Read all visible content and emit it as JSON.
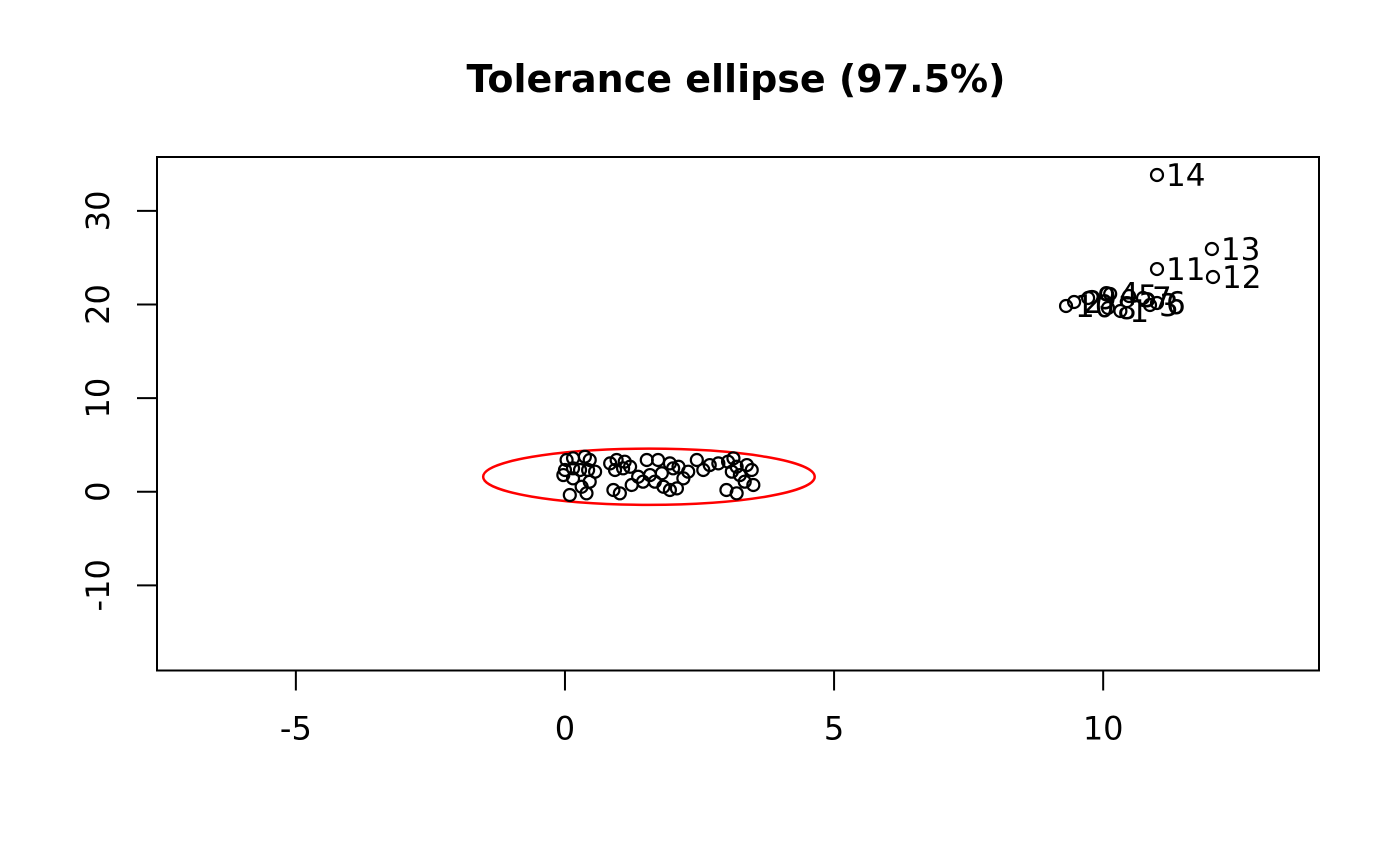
{
  "chart_data": {
    "type": "scatter",
    "title": "Tolerance ellipse (97.5%)",
    "xlabel": "",
    "ylabel": "",
    "xlim": [
      -7.58,
      14.01
    ],
    "ylim": [
      -19.1,
      35.76
    ],
    "x_ticks": [
      "-5",
      "0",
      "5",
      "10"
    ],
    "x_tick_values": [
      -5,
      0,
      5,
      10
    ],
    "y_ticks": [
      "-10",
      "0",
      "10",
      "20",
      "30"
    ],
    "y_tick_values": [
      -10,
      0,
      10,
      20,
      30
    ],
    "grid": false,
    "legend": "none",
    "marker": {
      "shape": "open-circle",
      "color": "#000000"
    },
    "tolerance_ellipse": {
      "level_label": "97.5%",
      "center": [
        1.56,
        1.6
      ],
      "semi_axis_x": 3.08,
      "semi_axis_y": 3.0,
      "color": "#FF0000"
    },
    "labeled_outliers": [
      {
        "label": "1",
        "x": 10.32,
        "y": 19.31
      },
      {
        "label": "2",
        "x": 9.46,
        "y": 20.27
      },
      {
        "label": "3",
        "x": 10.87,
        "y": 19.95
      },
      {
        "label": "4",
        "x": 10.13,
        "y": 21.13
      },
      {
        "label": "5",
        "x": 10.48,
        "y": 20.91
      },
      {
        "label": "6",
        "x": 11.0,
        "y": 20.16
      },
      {
        "label": "7",
        "x": 10.74,
        "y": 20.7
      },
      {
        "label": "8",
        "x": 10.09,
        "y": 19.63
      },
      {
        "label": "9",
        "x": 9.72,
        "y": 20.7
      },
      {
        "label": "10",
        "x": 9.31,
        "y": 19.84
      },
      {
        "label": "11",
        "x": 11.0,
        "y": 23.79
      },
      {
        "label": "12",
        "x": 12.04,
        "y": 22.94
      },
      {
        "label": "13",
        "x": 12.02,
        "y": 25.93
      },
      {
        "label": "14",
        "x": 11.0,
        "y": 33.84
      }
    ],
    "cluster_points": [
      [
        0.03,
        3.39
      ],
      [
        0.15,
        3.57
      ],
      [
        0.37,
        3.74
      ],
      [
        0.46,
        3.39
      ],
      [
        0.0,
        2.32
      ],
      [
        -0.03,
        1.78
      ],
      [
        0.15,
        2.5
      ],
      [
        0.28,
        2.32
      ],
      [
        0.43,
        2.32
      ],
      [
        0.56,
        2.14
      ],
      [
        0.15,
        1.43
      ],
      [
        0.31,
        0.53
      ],
      [
        0.09,
        -0.35
      ],
      [
        0.4,
        -0.17
      ],
      [
        0.46,
        1.07
      ],
      [
        0.84,
        3.03
      ],
      [
        0.96,
        3.39
      ],
      [
        1.11,
        3.21
      ],
      [
        1.08,
        2.5
      ],
      [
        0.93,
        2.32
      ],
      [
        1.21,
        2.67
      ],
      [
        0.9,
        0.18
      ],
      [
        1.02,
        -0.17
      ],
      [
        1.24,
        0.72
      ],
      [
        1.36,
        1.6
      ],
      [
        1.52,
        3.39
      ],
      [
        1.58,
        1.78
      ],
      [
        1.73,
        3.39
      ],
      [
        1.8,
        1.97
      ],
      [
        1.95,
        3.03
      ],
      [
        2.01,
        2.5
      ],
      [
        2.11,
        2.67
      ],
      [
        1.45,
        1.07
      ],
      [
        1.67,
        1.07
      ],
      [
        1.83,
        0.53
      ],
      [
        1.95,
        0.18
      ],
      [
        2.08,
        0.36
      ],
      [
        2.2,
        1.43
      ],
      [
        2.29,
        2.14
      ],
      [
        2.45,
        3.39
      ],
      [
        2.57,
        2.32
      ],
      [
        2.69,
        2.85
      ],
      [
        2.85,
        3.03
      ],
      [
        3.03,
        3.21
      ],
      [
        3.13,
        3.57
      ],
      [
        3.19,
        2.67
      ],
      [
        3.1,
        2.14
      ],
      [
        3.25,
        1.78
      ],
      [
        3.38,
        2.85
      ],
      [
        3.47,
        2.32
      ],
      [
        3.34,
        1.07
      ],
      [
        3.5,
        0.72
      ],
      [
        3.0,
        0.18
      ],
      [
        3.19,
        -0.17
      ]
    ]
  },
  "colors": {
    "background": "#FFFFFF",
    "axis": "#000000",
    "points": "#000000",
    "ellipse": "#FF0000"
  }
}
